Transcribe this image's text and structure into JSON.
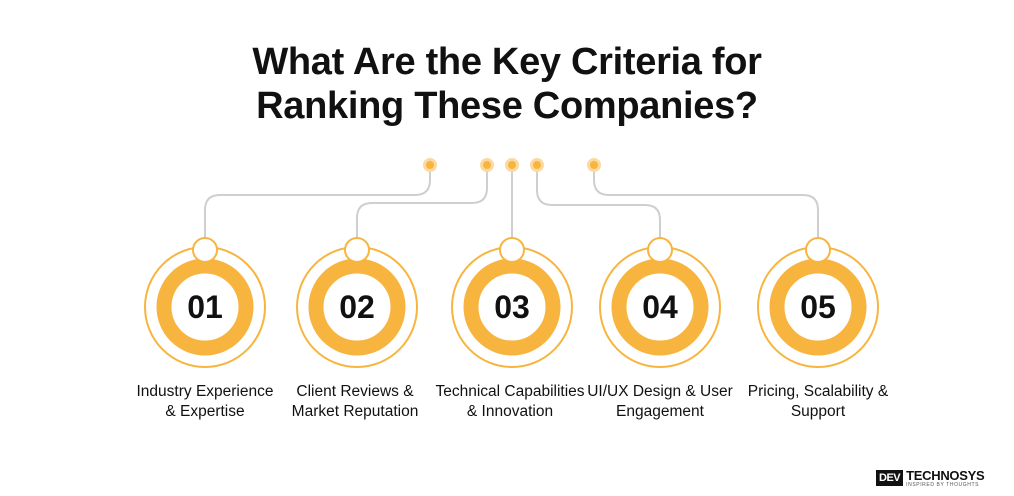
{
  "title": {
    "line1": "What Are the Key Criteria for",
    "line2": "Ranking These Companies?"
  },
  "colors": {
    "accent": "#F7B53F",
    "accent_light": "#FCD9A0",
    "connector": "#CFCFCF",
    "text": "#111111"
  },
  "steps": [
    {
      "number": "01",
      "label": "Industry Experience & Expertise"
    },
    {
      "number": "02",
      "label": "Client Reviews & Market Reputation"
    },
    {
      "number": "03",
      "label": "Technical Capabilities & Innovation"
    },
    {
      "number": "04",
      "label": "UI/UX Design & User Engagement"
    },
    {
      "number": "05",
      "label": "Pricing, Scalability & Support"
    }
  ],
  "brand": {
    "logo_mark": "DEV",
    "name": "TECHNOSYS",
    "tagline": "INSPIRED BY THOUGHTS"
  }
}
